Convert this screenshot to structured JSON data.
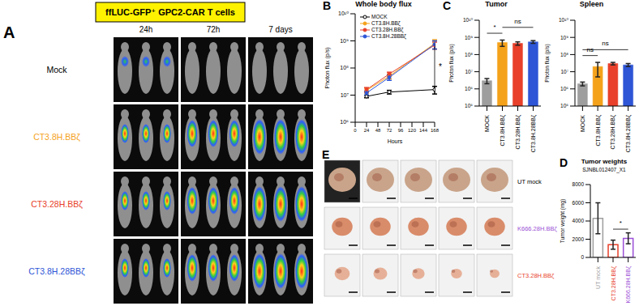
{
  "panel_labels": [
    "A",
    "B",
    "C",
    "D",
    "E"
  ],
  "panel_a": {
    "header": "ffLUC-GFP⁺ GPC2-CAR T cells",
    "columns": [
      "24h",
      "72h",
      "7 days"
    ],
    "rows": [
      {
        "label": "Mock",
        "color": "#000000"
      },
      {
        "label": "CT3.8H.BBζ",
        "color": "#f5a21b"
      },
      {
        "label": "CT3.28H.BBζ",
        "color": "#e8402a"
      },
      {
        "label": "CT3.8H.28BBζ",
        "color": "#2d55d6"
      }
    ]
  },
  "panel_e": {
    "rows": [
      {
        "label": "UT mock",
        "color": "#000000"
      },
      {
        "label": "K666.28H.BBζ",
        "color": "#9b4fd6"
      },
      {
        "label": "CT3.28H.BBζ",
        "color": "#e8402a"
      }
    ]
  },
  "chart_data": [
    {
      "type": "line",
      "title": "Whole body flux",
      "x_label": "Hours",
      "y_label": "Photon flux (p/s)",
      "x": [
        24,
        72,
        168
      ],
      "xlim": [
        0,
        168
      ],
      "xticks": [
        0,
        24,
        48,
        72,
        96,
        120,
        144,
        168
      ],
      "ylim": [
        1000000,
        10000000000
      ],
      "yticks": [
        {
          "value": 1000000,
          "label": "10⁶"
        },
        {
          "value": 10000000,
          "label": "10⁷"
        },
        {
          "value": 100000000,
          "label": "10⁸"
        },
        {
          "value": 1000000000,
          "label": "10⁹"
        },
        {
          "value": 10000000000,
          "label": "10¹⁰"
        }
      ],
      "log": "y",
      "legend": "upper left",
      "series": [
        {
          "name": "MOCK",
          "color": "#000000",
          "marker": "open_circle",
          "values": [
            9000000,
            13000000,
            16000000
          ],
          "errors": [
            1000000,
            2000000,
            5000000
          ]
        },
        {
          "name": "CT3.8H.BBζ",
          "color": "#f5a21b",
          "marker": "circle",
          "values": [
            15000000,
            50000000,
            800000000
          ],
          "errors": [
            3000000,
            10000000,
            300000000
          ]
        },
        {
          "name": "CT3.28H.BBζ",
          "color": "#e8402a",
          "marker": "circle",
          "values": [
            16000000,
            60000000,
            700000000
          ],
          "errors": [
            3000000,
            10000000,
            200000000
          ]
        },
        {
          "name": "CT3.8H.28BBζ",
          "color": "#2d55d6",
          "marker": "circle",
          "values": [
            12000000,
            45000000,
            750000000
          ],
          "errors": [
            2000000,
            10000000,
            250000000
          ]
        }
      ],
      "annotations": [
        {
          "text": "*",
          "x": 168
        }
      ]
    },
    {
      "type": "bar",
      "title": "Tumor",
      "y_label": "Photon flux (p/s)",
      "categories": [
        "MOCK",
        "CT3.8H.BBζ",
        "CT3.28H.BBζ",
        "CT3.8H.28BBζ"
      ],
      "values": [
        3000000,
        500000000,
        450000000,
        550000000
      ],
      "errors": [
        1000000,
        200000000,
        100000000,
        100000000
      ],
      "colors": [
        "#9e9e9e",
        "#f5a21b",
        "#e8402a",
        "#2d55d6"
      ],
      "ylim": [
        100000,
        10000000000
      ],
      "yticks": [
        {
          "value": 100000,
          "label": "10⁵"
        },
        {
          "value": 1000000,
          "label": "10⁶"
        },
        {
          "value": 10000000,
          "label": "10⁷"
        },
        {
          "value": 100000000,
          "label": "10⁸"
        },
        {
          "value": 1000000000,
          "label": "10⁹"
        },
        {
          "value": 10000000000,
          "label": "10¹⁰"
        }
      ],
      "log": "y",
      "annotations": [
        {
          "text": "*",
          "between": [
            "MOCK",
            "CT3.8H.BBζ"
          ]
        },
        {
          "text": "ns",
          "between": [
            "CT3.8H.BBζ",
            "CT3.8H.28BBζ"
          ]
        }
      ]
    },
    {
      "type": "bar",
      "title": "Spleen",
      "y_label": "Photon flux (p/s)",
      "categories": [
        "MOCK",
        "CT3.8H.BBζ",
        "CT3.28H.BBζ",
        "CT3.8H.28BBζ"
      ],
      "values": [
        2000000,
        20000000,
        30000000,
        25000000
      ],
      "errors": [
        500000,
        15000000,
        5000000,
        5000000
      ],
      "colors": [
        "#9e9e9e",
        "#f5a21b",
        "#e8402a",
        "#2d55d6"
      ],
      "ylim": [
        100000,
        10000000000
      ],
      "yticks": [
        {
          "value": 100000,
          "label": "10⁵"
        },
        {
          "value": 1000000,
          "label": "10⁶"
        },
        {
          "value": 10000000,
          "label": "10⁷"
        },
        {
          "value": 100000000,
          "label": "10⁸"
        },
        {
          "value": 1000000000,
          "label": "10⁹"
        },
        {
          "value": 10000000000,
          "label": "10¹⁰"
        }
      ],
      "log": "y",
      "annotations": [
        {
          "text": "ns",
          "between": [
            "MOCK",
            "CT3.8H.BBζ"
          ]
        },
        {
          "text": "ns",
          "between": [
            "MOCK",
            "CT3.8H.28BBζ"
          ]
        }
      ]
    },
    {
      "type": "bar",
      "title": "Tumor weights",
      "subtitle": "SJNBL012407_X1",
      "y_label": "Tumor weight (mg)",
      "categories": [
        "UT mock",
        "CT3.28H.BBζ",
        "K666.28H.BBζ"
      ],
      "values": [
        4300,
        1400,
        2100
      ],
      "errors": [
        1700,
        500,
        600
      ],
      "colors": [
        "#9e9e9e",
        "#e8402a",
        "#9b4fd6"
      ],
      "ylim": [
        0,
        8000
      ],
      "yticks": [
        0,
        2000,
        4000,
        6000,
        8000
      ],
      "annotations": [
        {
          "text": "*",
          "between": [
            "CT3.28H.BBζ",
            "K666.28H.BBζ"
          ]
        }
      ]
    }
  ]
}
